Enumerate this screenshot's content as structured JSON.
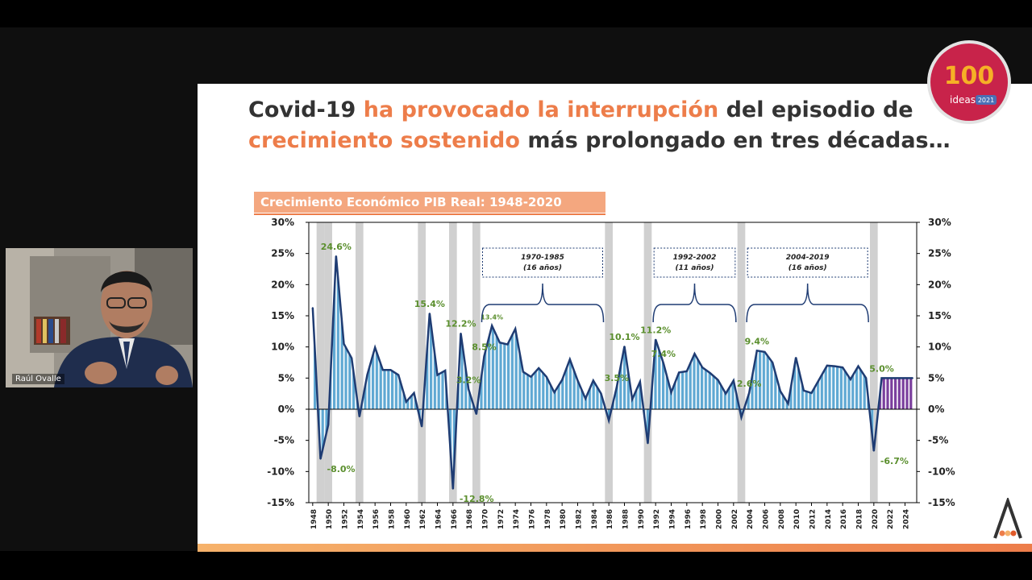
{
  "slide": {
    "title_part1": "Covid-19 ",
    "title_hl1": "ha provocado la interrupción",
    "title_part2": " del episodio de",
    "title_hl2": "crecimiento sostenido",
    "title_part3": " más prolongado en tres décadas…"
  },
  "video": {
    "participant_name": "Raúl Ovalle"
  },
  "badge": {
    "number": "100",
    "word": "ideas",
    "year": "2021"
  },
  "chart_data": {
    "type": "bar",
    "title": "Crecimiento Económico PIB Real: 1948-2020",
    "x": [
      1948,
      1949,
      1950,
      1951,
      1952,
      1953,
      1954,
      1955,
      1956,
      1957,
      1958,
      1959,
      1960,
      1961,
      1962,
      1963,
      1964,
      1965,
      1966,
      1967,
      1968,
      1969,
      1970,
      1971,
      1972,
      1973,
      1974,
      1975,
      1976,
      1977,
      1978,
      1979,
      1980,
      1981,
      1982,
      1983,
      1984,
      1985,
      1986,
      1987,
      1988,
      1989,
      1990,
      1991,
      1992,
      1993,
      1994,
      1995,
      1996,
      1997,
      1998,
      1999,
      2000,
      2001,
      2002,
      2003,
      2004,
      2005,
      2006,
      2007,
      2008,
      2009,
      2010,
      2011,
      2012,
      2013,
      2014,
      2015,
      2016,
      2017,
      2018,
      2019,
      2020,
      2021,
      2022,
      2023,
      2024,
      2025
    ],
    "values": [
      16.3,
      -8.0,
      -2.5,
      24.6,
      10.5,
      8.2,
      -1.2,
      5.5,
      9.9,
      6.3,
      6.3,
      5.5,
      1.2,
      2.6,
      -2.8,
      15.4,
      5.5,
      6.2,
      -12.8,
      12.2,
      3.2,
      -0.8,
      8.5,
      13.4,
      10.7,
      10.4,
      12.9,
      6.0,
      5.2,
      6.6,
      5.2,
      2.7,
      4.7,
      8.0,
      4.6,
      1.7,
      4.6,
      2.5,
      -1.8,
      3.5,
      10.1,
      1.6,
      4.4,
      -5.5,
      11.2,
      7.4,
      2.7,
      5.9,
      6.1,
      8.9,
      6.7,
      5.8,
      4.7,
      2.5,
      4.6,
      -1.3,
      2.6,
      9.4,
      9.2,
      7.5,
      2.9,
      0.9,
      8.3,
      3.0,
      2.6,
      4.8,
      7.0,
      6.9,
      6.7,
      4.8,
      6.9,
      5.0,
      -6.7,
      5.0,
      5.0,
      5.0,
      5.0,
      5.0
    ],
    "projection_start_year": 2021,
    "ylim": [
      -15,
      30
    ],
    "yticks": [
      "-15%",
      "-10%",
      "-5%",
      "0%",
      "5%",
      "10%",
      "15%",
      "20%",
      "25%",
      "30%"
    ],
    "xticks": [
      "1948",
      "1950",
      "1952",
      "1954",
      "1956",
      "1958",
      "1960",
      "1962",
      "1964",
      "1966",
      "1968",
      "1970",
      "1972",
      "1974",
      "1976",
      "1978",
      "1980",
      "1982",
      "1984",
      "1986",
      "1988",
      "1990",
      "1992",
      "1994",
      "1996",
      "1998",
      "2000",
      "2002",
      "2004",
      "2006",
      "2008",
      "2010",
      "2012",
      "2014",
      "2016",
      "2018",
      "2020",
      "2022",
      "2024"
    ],
    "recession_years": [
      1949,
      1950,
      1954,
      1962,
      1966,
      1969,
      1986,
      1991,
      2003,
      2020
    ],
    "data_labels": [
      {
        "year": 1951,
        "text": "24.6%"
      },
      {
        "year": 1949,
        "text": "-8.0%"
      },
      {
        "year": 1963,
        "text": "15.4%"
      },
      {
        "year": 1967,
        "text": "12.2%"
      },
      {
        "year": 1966,
        "text": "-12.8%"
      },
      {
        "year": 1968,
        "text": "3.2%"
      },
      {
        "year": 1970,
        "text": "8.5%"
      },
      {
        "year": 1971,
        "text": "13.4%"
      },
      {
        "year": 1987,
        "text": "3.5%"
      },
      {
        "year": 1988,
        "text": "10.1%"
      },
      {
        "year": 1992,
        "text": "11.2%"
      },
      {
        "year": 1993,
        "text": "7.4%"
      },
      {
        "year": 2004,
        "text": "2.6%"
      },
      {
        "year": 2005,
        "text": "9.4%"
      },
      {
        "year": 2020,
        "text": "-6.7%"
      },
      {
        "year": 2021,
        "text": "5.0%"
      }
    ],
    "episodes": [
      {
        "start": 1970,
        "end": 1985,
        "range": "1970-1985",
        "duration": "(16 años)"
      },
      {
        "start": 1992,
        "end": 2002,
        "range": "1992-2002",
        "duration": "(11 años)"
      },
      {
        "start": 2004,
        "end": 2019,
        "range": "2004-2019",
        "duration": "(16 años)"
      }
    ],
    "colors": {
      "bar_fill": "#5fa8d3",
      "bar_stripe": "#ffffff",
      "line": "#1f3c73",
      "projection": "#7a3e9d",
      "recession": "#d0d0d0",
      "label": "#5b8f2e"
    }
  }
}
